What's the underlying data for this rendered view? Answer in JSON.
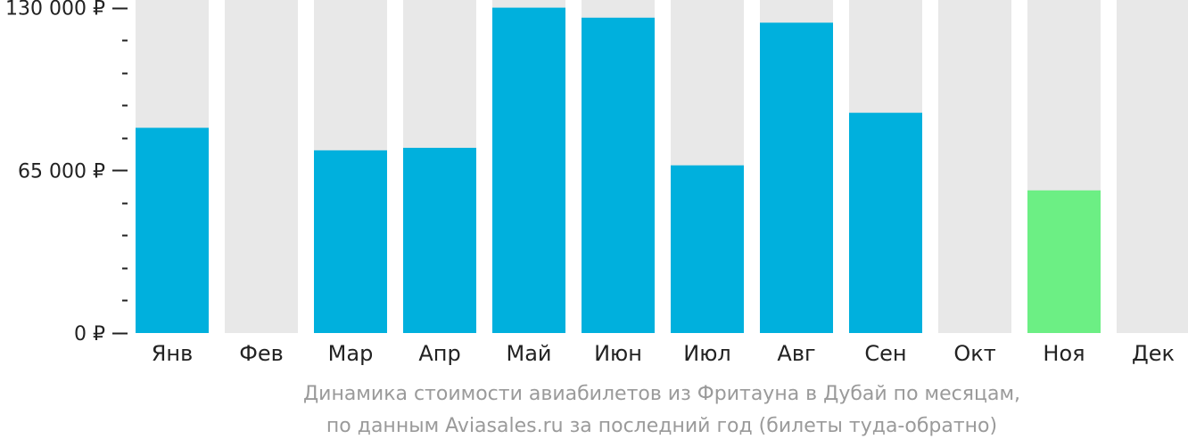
{
  "chart_data": {
    "type": "bar",
    "categories": [
      "Янв",
      "Фев",
      "Мар",
      "Апр",
      "Май",
      "Июн",
      "Июл",
      "Авг",
      "Сен",
      "Окт",
      "Ноя",
      "Дек"
    ],
    "values": [
      82000,
      null,
      73000,
      74000,
      130000,
      126000,
      67000,
      124000,
      88000,
      null,
      57000,
      null
    ],
    "highlight_category": "Ноя",
    "ylim": [
      0,
      132000
    ],
    "yticks": [
      {
        "value": 0,
        "label": "0 ₽"
      },
      {
        "value": 65000,
        "label": "65 000 ₽"
      },
      {
        "value": 130000,
        "label": "130 000 ₽"
      }
    ],
    "minor_tick_step": 13000,
    "grid": false,
    "colors": {
      "bar": "#00b0dd",
      "highlight": "#6cef84",
      "background_bar": "#e8e8e8",
      "axis": "#222222"
    }
  },
  "caption": {
    "line1": "Динамика стоимости авиабилетов из Фритауна в Дубай по месяцам,",
    "line2": "по данным Aviasales.ru за последний год (билеты туда-обратно)"
  }
}
